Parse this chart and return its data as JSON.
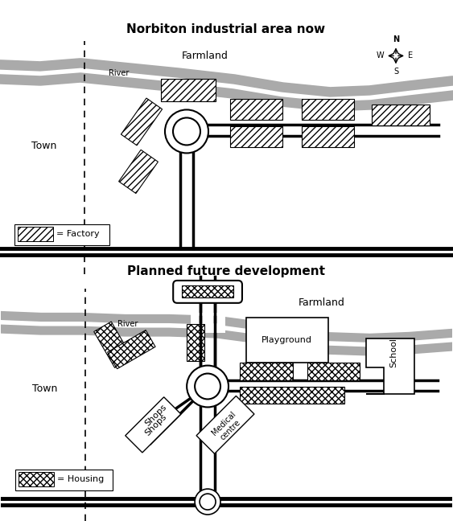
{
  "title1": "Norbiton industrial area now",
  "title2": "Planned future development",
  "legend1_label": "= Factory",
  "legend2_label": "= Housing",
  "bg_color": "#ffffff",
  "river_color": "#aaaaaa",
  "hatch_factory": "////",
  "hatch_housing": "xxxx",
  "town_label": "Town",
  "farmland_label1": "Farmland",
  "farmland_label2": "Farmland",
  "river_label": "River",
  "playground_label": "Playground",
  "school_label": "School",
  "shops_label": "Shops",
  "medical_label": "Medical\ncentre",
  "compass_n": "N",
  "compass_s": "S",
  "compass_e": "E",
  "compass_w": "W"
}
